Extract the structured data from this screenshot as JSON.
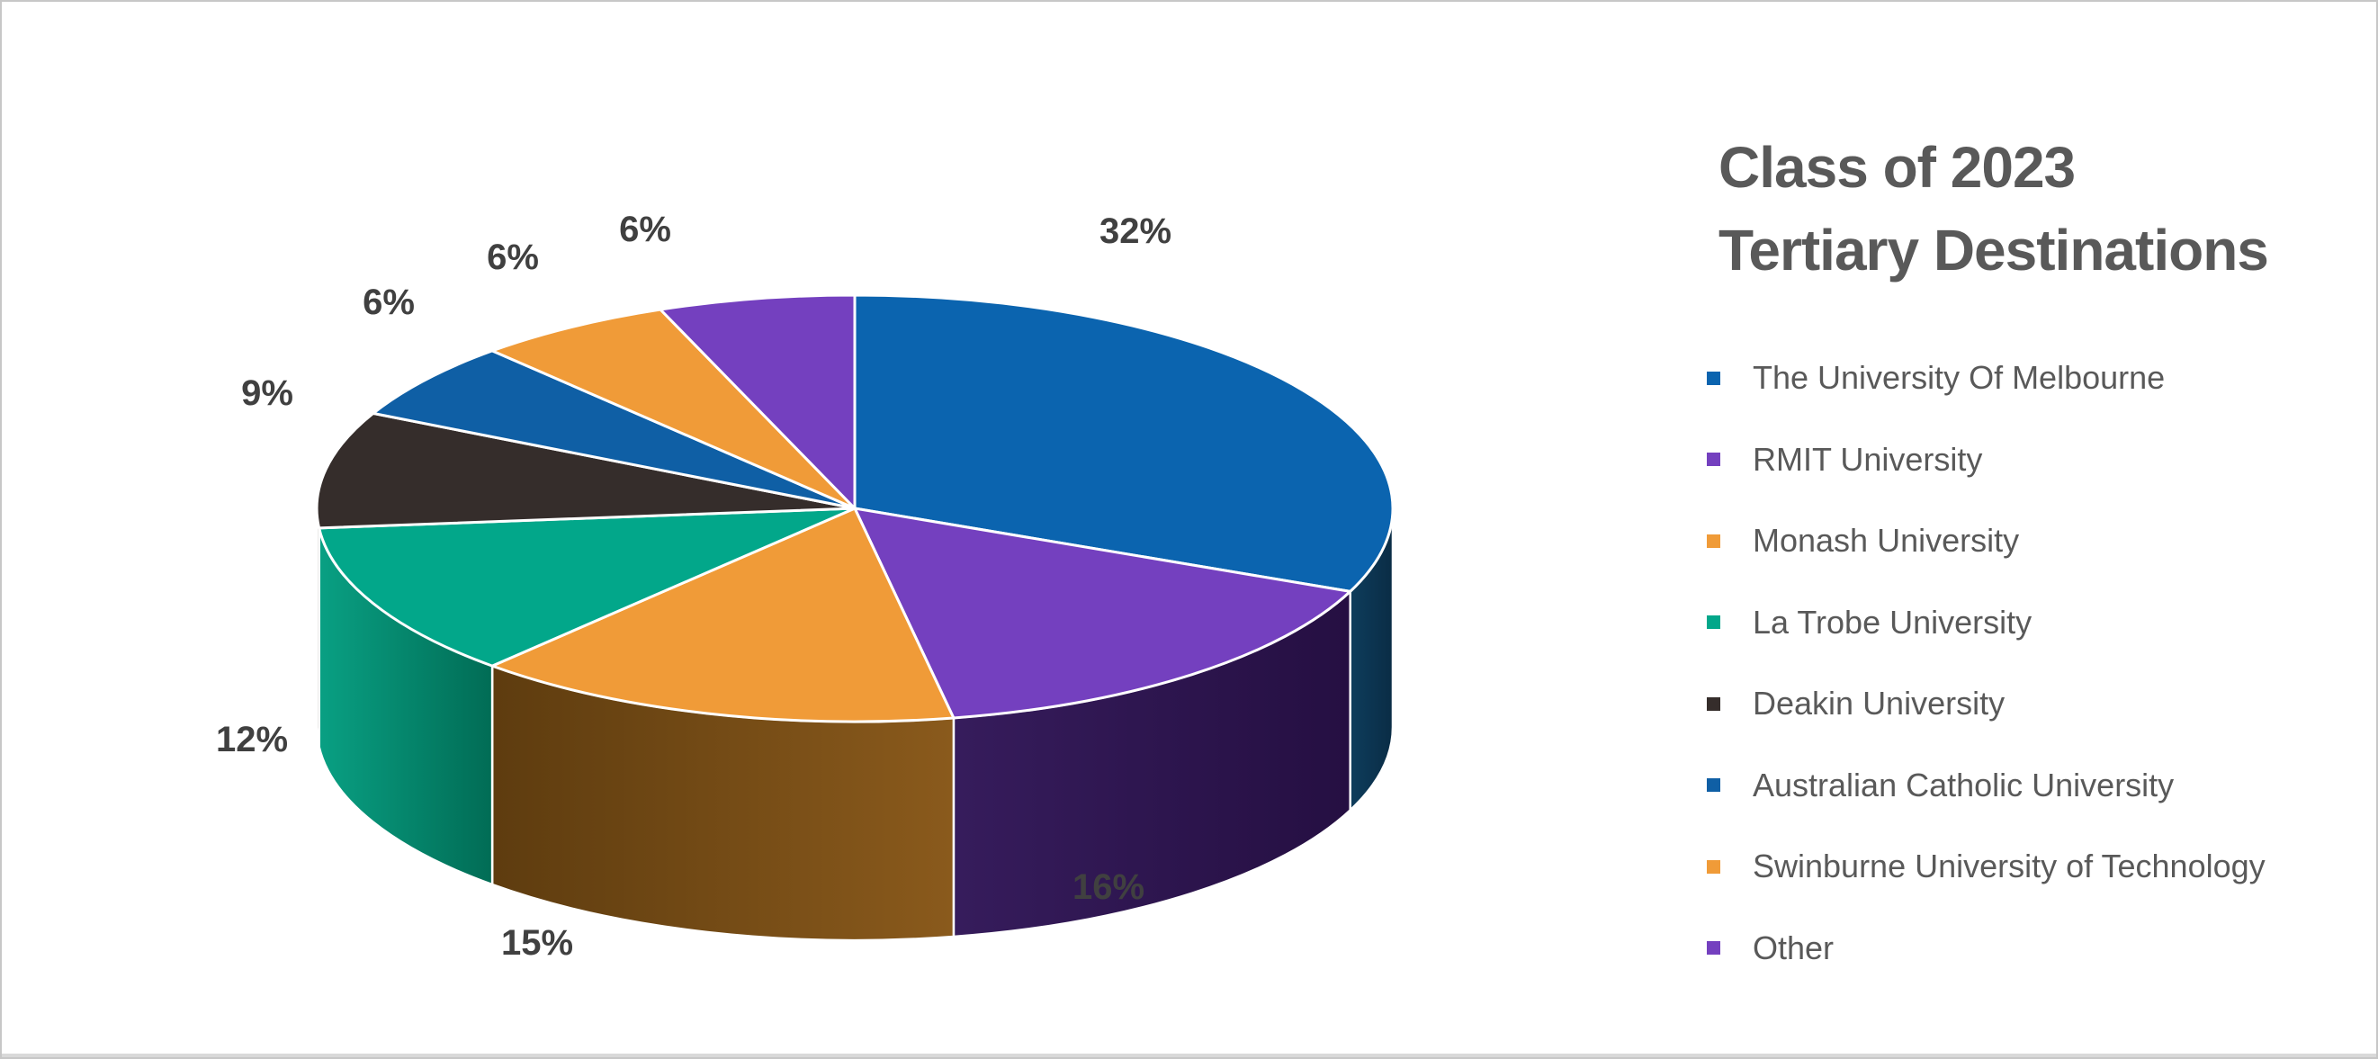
{
  "frame": {
    "background": "#ffffff",
    "border_color": "#c7c7c7",
    "bottom_strip_color": "#d9d9d9"
  },
  "styles": {
    "title_color": "#595959",
    "legend_text_color": "#595959",
    "data_label_color": "#404040",
    "slice_border_color": "#ffffff"
  },
  "chart_data": {
    "type": "pie",
    "style": "3d",
    "title": "Class of 2023 Tertiary Destinations",
    "title_lines": [
      "Class of 2023",
      "Tertiary Destinations"
    ],
    "legend_position": "right",
    "unit": "percent",
    "series": [
      {
        "name": "The University Of Melbourne",
        "value": 32,
        "label": "32%",
        "color": "#0B64AF",
        "side_from": "#0E3D5C",
        "side_to": "#0A2C45"
      },
      {
        "name": "RMIT University",
        "value": 16,
        "label": "16%",
        "color": "#7440BF",
        "side_from": "#361C5C",
        "side_to": "#250F42"
      },
      {
        "name": "Monash University",
        "value": 15,
        "label": "15%",
        "color": "#F09B38",
        "side_from": "#5E3C0F",
        "side_to": "#8A5A1C"
      },
      {
        "name": "La Trobe University",
        "value": 12,
        "label": "12%",
        "color": "#02A78A",
        "side_from": "#09A083",
        "side_to": "#016C55"
      },
      {
        "name": "Deakin University",
        "value": 9,
        "label": "9%",
        "color": "#352D2B"
      },
      {
        "name": "Australian Catholic University",
        "value": 6,
        "label": "6%",
        "color": "#0F5FA5"
      },
      {
        "name": "Swinburne University of Technology",
        "value": 6,
        "label": "6%",
        "color": "#F09B38"
      },
      {
        "name": "Other",
        "value": 6,
        "label": "6%",
        "color": "#7440BF"
      }
    ]
  }
}
